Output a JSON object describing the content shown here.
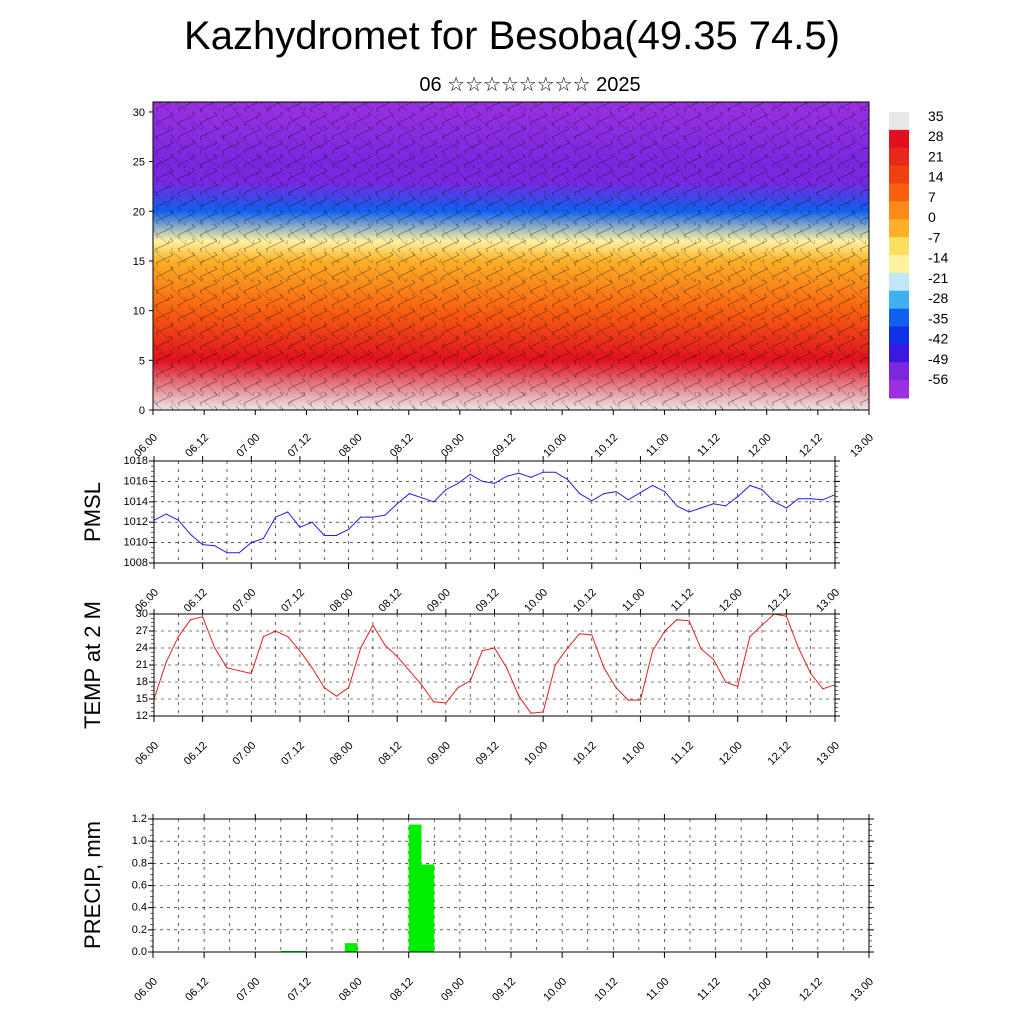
{
  "title": "Kazhydromet for Besoba(49.35 74.5)",
  "subtitle": "06 ☆☆☆☆☆☆☆☆ 2025",
  "time_labels": [
    "06.00",
    "06.12",
    "07.00",
    "07.12",
    "08.00",
    "08.12",
    "09.00",
    "09.12",
    "10.00",
    "10.12",
    "11.00",
    "11.12",
    "12.00",
    "12.12",
    "13.00"
  ],
  "chart_data": [
    {
      "type": "heatmap",
      "name": "cross-section",
      "y_ticks": [
        "0",
        "5",
        "10",
        "15",
        "20",
        "25",
        "30"
      ],
      "ylim": [
        0,
        31
      ],
      "colorbar_labels": [
        "35",
        "28",
        "21",
        "14",
        "7",
        "0",
        "-7",
        "-14",
        "-21",
        "-28",
        "-35",
        "-42",
        "-49",
        "-56"
      ],
      "colorbar_colors": [
        "#e8e8e8",
        "#e01020",
        "#e82818",
        "#f04010",
        "#f86010",
        "#fb8a1a",
        "#fcb028",
        "#fde060",
        "#fff2a0",
        "#c0e8f8",
        "#40b0f0",
        "#1060f0",
        "#1030e8",
        "#3a18e0",
        "#7a28e0",
        "#9a30e0"
      ],
      "temperature_profile": [
        {
          "height": 0,
          "value": 32
        },
        {
          "height": 5,
          "value": 26
        },
        {
          "height": 10,
          "value": 12
        },
        {
          "height": 15,
          "value": -2
        },
        {
          "height": 17,
          "value": -14
        },
        {
          "height": 20,
          "value": -35
        },
        {
          "height": 23,
          "value": -52
        },
        {
          "height": 25,
          "value": -56
        },
        {
          "height": 31,
          "value": -60
        }
      ]
    },
    {
      "type": "line",
      "name": "pmsl",
      "ylabel": "PMSL",
      "y_ticks": [
        "1008",
        "1010",
        "1012",
        "1014",
        "1016",
        "1018"
      ],
      "ylim": [
        1008,
        1018
      ],
      "color": "#2020e0",
      "x": [
        0,
        1,
        2,
        3,
        4,
        5,
        6,
        7,
        8,
        9,
        10,
        11,
        12,
        13,
        14,
        15,
        16,
        17,
        18,
        19,
        20,
        21,
        22,
        23,
        24,
        25,
        26,
        27,
        28,
        29,
        30,
        31,
        32,
        33,
        34,
        35,
        36,
        37,
        38,
        39,
        40,
        41,
        42,
        43,
        44,
        45,
        46,
        47,
        48,
        49,
        50,
        51,
        52,
        53,
        54,
        55,
        56
      ],
      "values": [
        1012.2,
        1012.8,
        1012.2,
        1010.8,
        1009.8,
        1009.7,
        1009.0,
        1009.0,
        1010.0,
        1010.4,
        1012.5,
        1013.0,
        1011.5,
        1012.0,
        1010.7,
        1010.7,
        1011.3,
        1012.5,
        1012.5,
        1012.7,
        1013.8,
        1014.8,
        1014.4,
        1014.0,
        1015.2,
        1015.8,
        1016.7,
        1016.0,
        1015.8,
        1016.5,
        1016.8,
        1016.4,
        1016.9,
        1016.9,
        1016.2,
        1014.8,
        1014.1,
        1014.8,
        1015.0,
        1014.2,
        1014.9,
        1015.6,
        1015.0,
        1013.6,
        1013.0,
        1013.4,
        1013.8,
        1013.6,
        1014.5,
        1015.6,
        1015.2,
        1014.0,
        1013.4,
        1014.3,
        1014.3,
        1014.2,
        1014.7
      ]
    },
    {
      "type": "line",
      "name": "temp2m",
      "ylabel": "TEMP at 2 M",
      "y_ticks": [
        "12",
        "15",
        "18",
        "21",
        "24",
        "27",
        "30"
      ],
      "ylim": [
        12,
        30
      ],
      "color": "#e02020",
      "x": [
        0,
        1,
        2,
        3,
        4,
        5,
        6,
        7,
        8,
        9,
        10,
        11,
        12,
        13,
        14,
        15,
        16,
        17,
        18,
        19,
        20,
        21,
        22,
        23,
        24,
        25,
        26,
        27,
        28,
        29,
        30,
        31,
        32,
        33,
        34,
        35,
        36,
        37,
        38,
        39,
        40,
        41,
        42,
        43,
        44,
        45,
        46,
        47,
        48,
        49,
        50,
        51,
        52,
        53,
        54,
        55,
        56
      ],
      "values": [
        15.0,
        21.5,
        26.0,
        29.0,
        29.5,
        24.0,
        20.5,
        20.0,
        19.5,
        26.0,
        27.0,
        26.0,
        23.5,
        20.5,
        17.0,
        15.5,
        17.0,
        24.0,
        28.0,
        24.5,
        22.5,
        20.0,
        17.5,
        14.5,
        14.3,
        17.0,
        18.2,
        23.5,
        24.0,
        20.5,
        15.5,
        12.5,
        12.7,
        21.0,
        24.0,
        26.5,
        26.3,
        20.5,
        17.0,
        14.8,
        14.8,
        23.5,
        27.0,
        29.0,
        28.8,
        23.8,
        22.0,
        18.0,
        17.2,
        26.0,
        28.0,
        30.0,
        29.6,
        24.0,
        19.5,
        16.8,
        17.5
      ]
    },
    {
      "type": "bar",
      "name": "precip",
      "ylabel": "PRECIP, mm",
      "y_ticks": [
        "0.0",
        "0.2",
        "0.4",
        "0.6",
        "0.8",
        "1.0",
        "1.2"
      ],
      "ylim": [
        0,
        1.2
      ],
      "color": "#00ee00",
      "bars": [
        {
          "x": 10,
          "value": 0.01
        },
        {
          "x": 11,
          "value": 0.01
        },
        {
          "x": 15,
          "value": 0.08
        },
        {
          "x": 20,
          "value": 1.15
        },
        {
          "x": 21,
          "value": 0.79
        }
      ]
    }
  ]
}
